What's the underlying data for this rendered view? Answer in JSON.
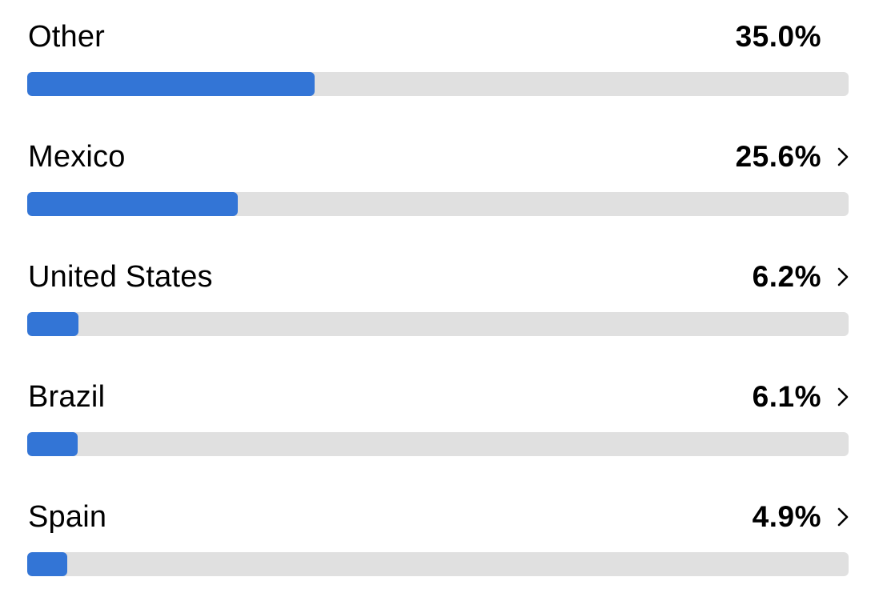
{
  "colors": {
    "accent": "#3375d6",
    "track": "#e0e0e0",
    "text": "#000000"
  },
  "bar_scale_max_percent": 100,
  "countries": [
    {
      "name": "Other",
      "percent_label": "35.0%",
      "percent": 35.0,
      "has_chevron": false,
      "chevron_icon": "chevron-right-icon"
    },
    {
      "name": "Mexico",
      "percent_label": "25.6%",
      "percent": 25.6,
      "has_chevron": true,
      "chevron_icon": "chevron-right-icon"
    },
    {
      "name": "United States",
      "percent_label": "6.2%",
      "percent": 6.2,
      "has_chevron": true,
      "chevron_icon": "chevron-right-icon"
    },
    {
      "name": "Brazil",
      "percent_label": "6.1%",
      "percent": 6.1,
      "has_chevron": true,
      "chevron_icon": "chevron-right-icon"
    },
    {
      "name": "Spain",
      "percent_label": "4.9%",
      "percent": 4.9,
      "has_chevron": true,
      "chevron_icon": "chevron-right-icon"
    }
  ]
}
